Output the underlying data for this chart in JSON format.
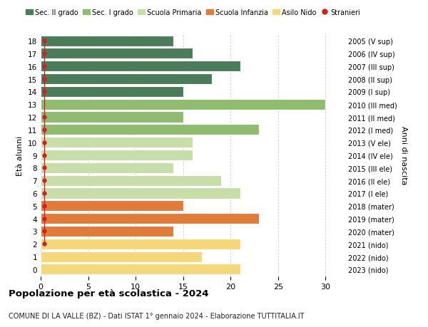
{
  "ages": [
    18,
    17,
    16,
    15,
    14,
    13,
    12,
    11,
    10,
    9,
    8,
    7,
    6,
    5,
    4,
    3,
    2,
    1,
    0
  ],
  "right_labels": [
    "2005 (V sup)",
    "2006 (IV sup)",
    "2007 (III sup)",
    "2008 (II sup)",
    "2009 (I sup)",
    "2010 (III med)",
    "2011 (II med)",
    "2012 (I med)",
    "2013 (V ele)",
    "2014 (IV ele)",
    "2015 (III ele)",
    "2016 (II ele)",
    "2017 (I ele)",
    "2018 (mater)",
    "2019 (mater)",
    "2020 (mater)",
    "2021 (nido)",
    "2022 (nido)",
    "2023 (nido)"
  ],
  "values": [
    14,
    16,
    21,
    18,
    15,
    30,
    15,
    23,
    16,
    16,
    14,
    19,
    21,
    15,
    23,
    14,
    21,
    17,
    21
  ],
  "bar_colors": [
    "#4a7c59",
    "#4a7c59",
    "#4a7c59",
    "#4a7c59",
    "#4a7c59",
    "#8fbc6e",
    "#8fbc6e",
    "#8fbc6e",
    "#c8dea8",
    "#c8dea8",
    "#c8dea8",
    "#c8dea8",
    "#c8dea8",
    "#e07b39",
    "#e07b39",
    "#e07b39",
    "#f5d87a",
    "#f5d87a",
    "#f5d87a"
  ],
  "stranieri_ages": [
    18,
    17,
    16,
    15,
    14,
    12,
    11,
    10,
    9,
    8,
    7,
    6,
    5,
    4,
    3,
    2
  ],
  "legend_labels": [
    "Sec. II grado",
    "Sec. I grado",
    "Scuola Primaria",
    "Scuola Infanzia",
    "Asilo Nido",
    "Stranieri"
  ],
  "legend_colors": [
    "#4a7c59",
    "#8fbc6e",
    "#c8dea8",
    "#e07b39",
    "#f5d87a",
    "#cc2222"
  ],
  "ylabel": "Età alunni",
  "right_ylabel": "Anni di nascita",
  "title": "Popolazione per età scolastica - 2024",
  "subtitle": "COMUNE DI LA VALLE (BZ) - Dati ISTAT 1° gennaio 2024 - Elaborazione TUTTITALIA.IT",
  "xlim": [
    0,
    32
  ],
  "background_color": "#ffffff",
  "grid_color": "#cccccc"
}
